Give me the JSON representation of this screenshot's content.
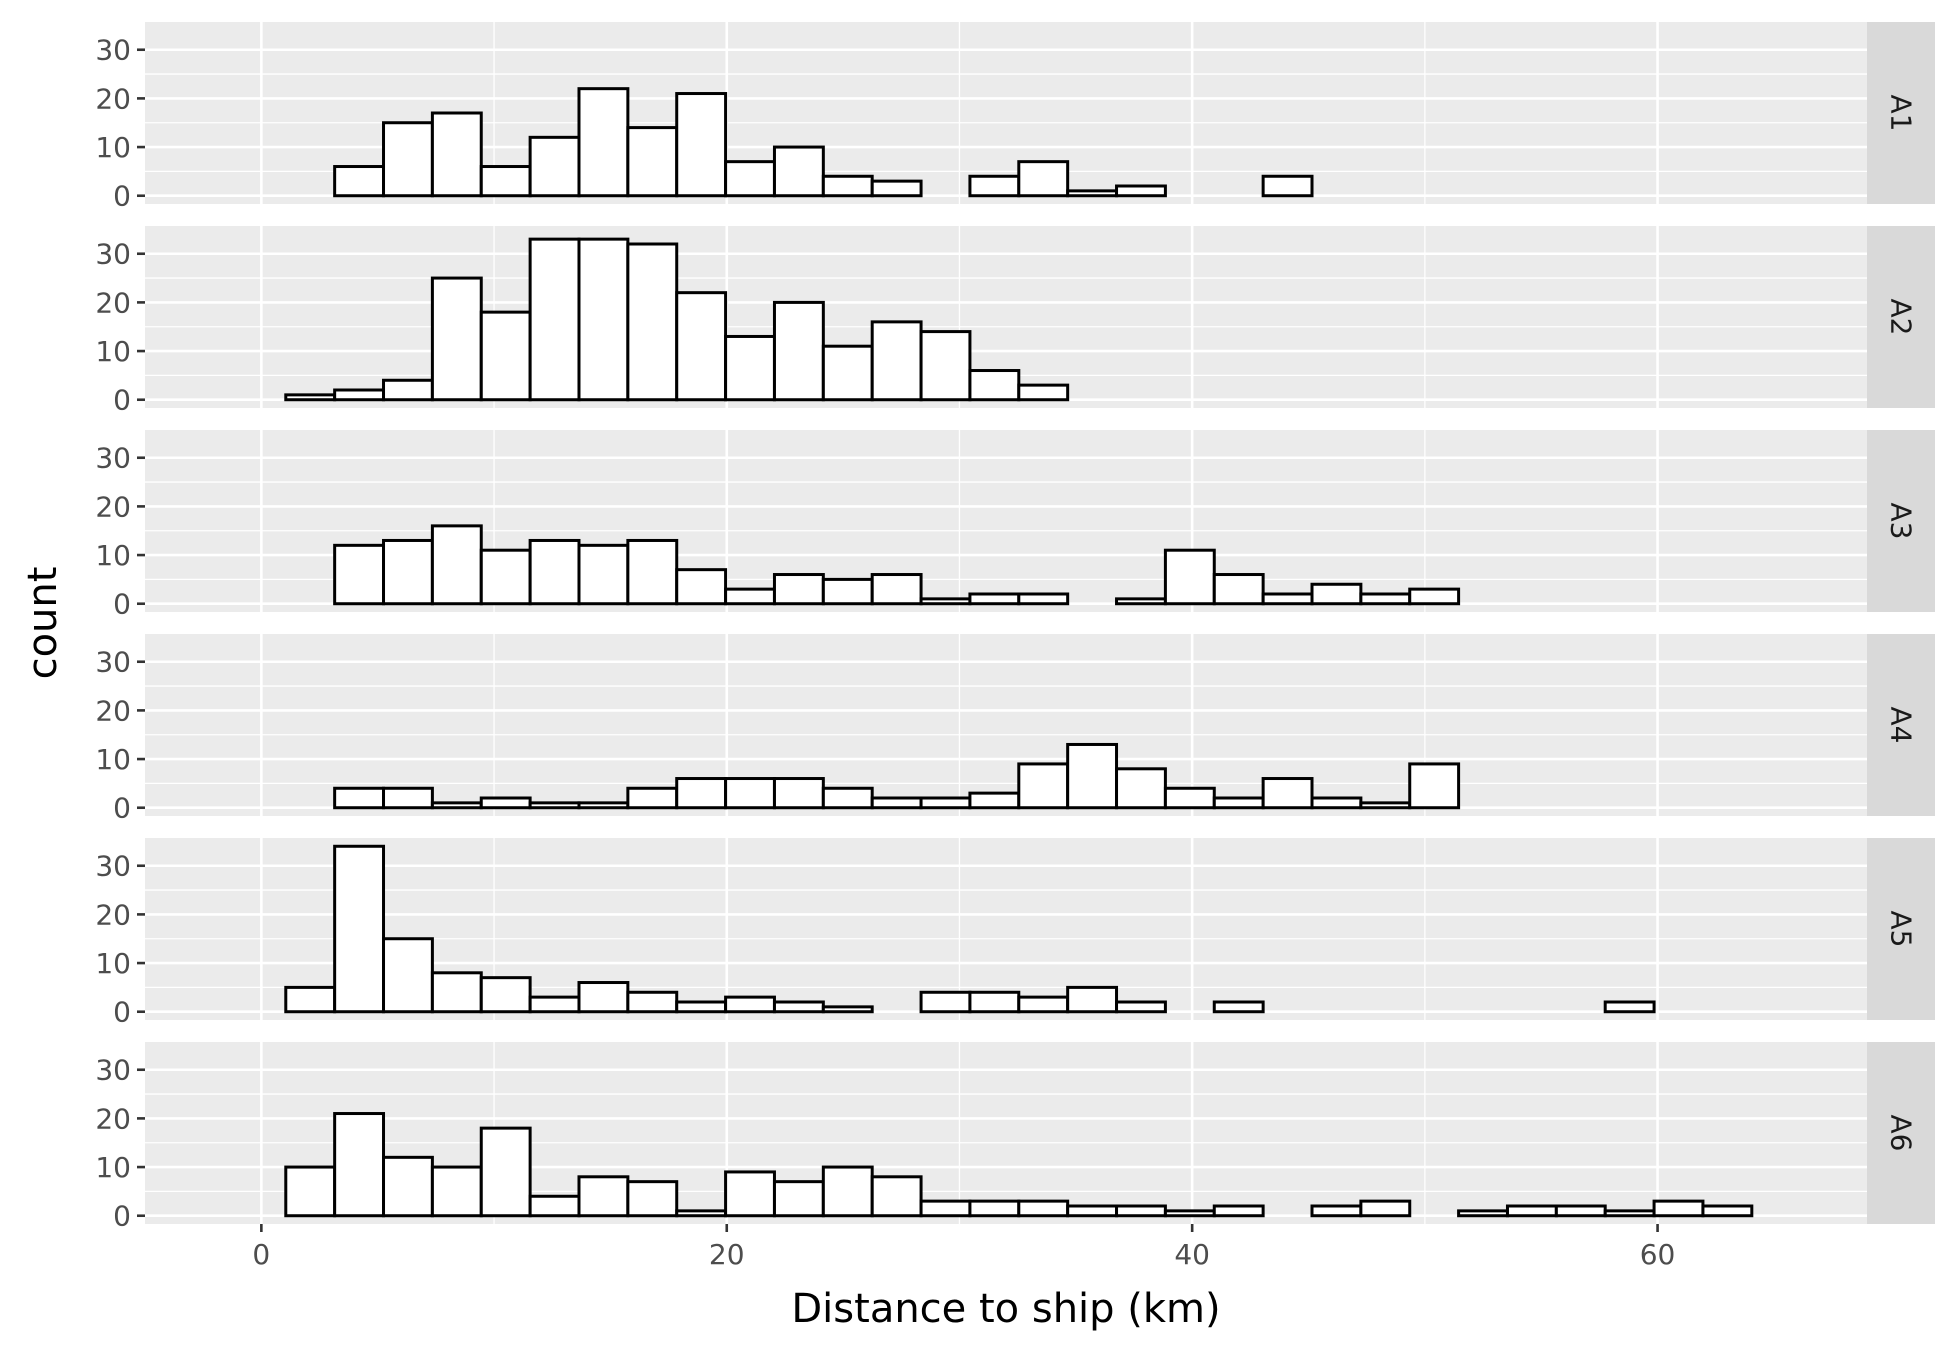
{
  "chart_data": {
    "type": "bar",
    "subtype": "faceted-histogram",
    "xlabel": "Distance to ship (km)",
    "ylabel": "count",
    "xlim": [
      -5,
      69
    ],
    "ylim": [
      -1.7,
      35.7
    ],
    "x_ticks": [
      0,
      20,
      40,
      60
    ],
    "x_tick_labels": [
      "0",
      "20",
      "40",
      "60"
    ],
    "y_ticks": [
      0,
      10,
      20,
      30
    ],
    "y_tick_labels": [
      "0",
      "10",
      "20",
      "30"
    ],
    "grid": true,
    "legend": "none",
    "bar_fill": "#ffffff",
    "bar_outline": "#000000",
    "panel_background": "#EBEBEB",
    "strip_background": "#D9D9D9",
    "bin_width": 2.1,
    "bin_edges": [
      1.05,
      3.15,
      5.25,
      7.35,
      9.45,
      11.55,
      13.65,
      15.75,
      17.85,
      19.95,
      22.05,
      24.15,
      26.25,
      28.35,
      30.45,
      32.55,
      34.65,
      36.75,
      38.85,
      40.95,
      43.05,
      45.15,
      47.25,
      49.35,
      51.45,
      53.55,
      55.65,
      57.75,
      59.85,
      61.95,
      64.05
    ],
    "panels": [
      {
        "strip": "A1",
        "counts": [
          0,
          6,
          15,
          17,
          6,
          12,
          22,
          14,
          21,
          7,
          10,
          4,
          3,
          0,
          4,
          7,
          1,
          2,
          0,
          0,
          4,
          0,
          0,
          0,
          0,
          0,
          0,
          0,
          0,
          0
        ]
      },
      {
        "strip": "A2",
        "counts": [
          1,
          2,
          4,
          25,
          18,
          33,
          33,
          32,
          22,
          13,
          20,
          11,
          16,
          14,
          6,
          3,
          0,
          0,
          0,
          0,
          0,
          0,
          0,
          0,
          0,
          0,
          0,
          0,
          0,
          0
        ]
      },
      {
        "strip": "A3",
        "counts": [
          0,
          12,
          13,
          16,
          11,
          13,
          12,
          13,
          7,
          3,
          6,
          5,
          6,
          1,
          2,
          2,
          0,
          1,
          11,
          6,
          2,
          4,
          2,
          3,
          0,
          0,
          0,
          0,
          0,
          0
        ]
      },
      {
        "strip": "A4",
        "counts": [
          0,
          4,
          4,
          1,
          2,
          1,
          1,
          4,
          6,
          6,
          6,
          4,
          2,
          2,
          3,
          9,
          13,
          8,
          4,
          2,
          6,
          2,
          1,
          9,
          0,
          0,
          0,
          0,
          0,
          0
        ]
      },
      {
        "strip": "A5",
        "counts": [
          5,
          34,
          15,
          8,
          7,
          3,
          6,
          4,
          2,
          3,
          2,
          1,
          0,
          4,
          4,
          3,
          5,
          2,
          0,
          2,
          0,
          0,
          0,
          0,
          0,
          0,
          0,
          2,
          0,
          0
        ]
      },
      {
        "strip": "A6",
        "counts": [
          10,
          21,
          12,
          10,
          18,
          4,
          8,
          7,
          1,
          9,
          7,
          10,
          8,
          3,
          3,
          3,
          2,
          2,
          1,
          2,
          0,
          2,
          3,
          0,
          1,
          2,
          2,
          1,
          3,
          2
        ]
      }
    ]
  }
}
